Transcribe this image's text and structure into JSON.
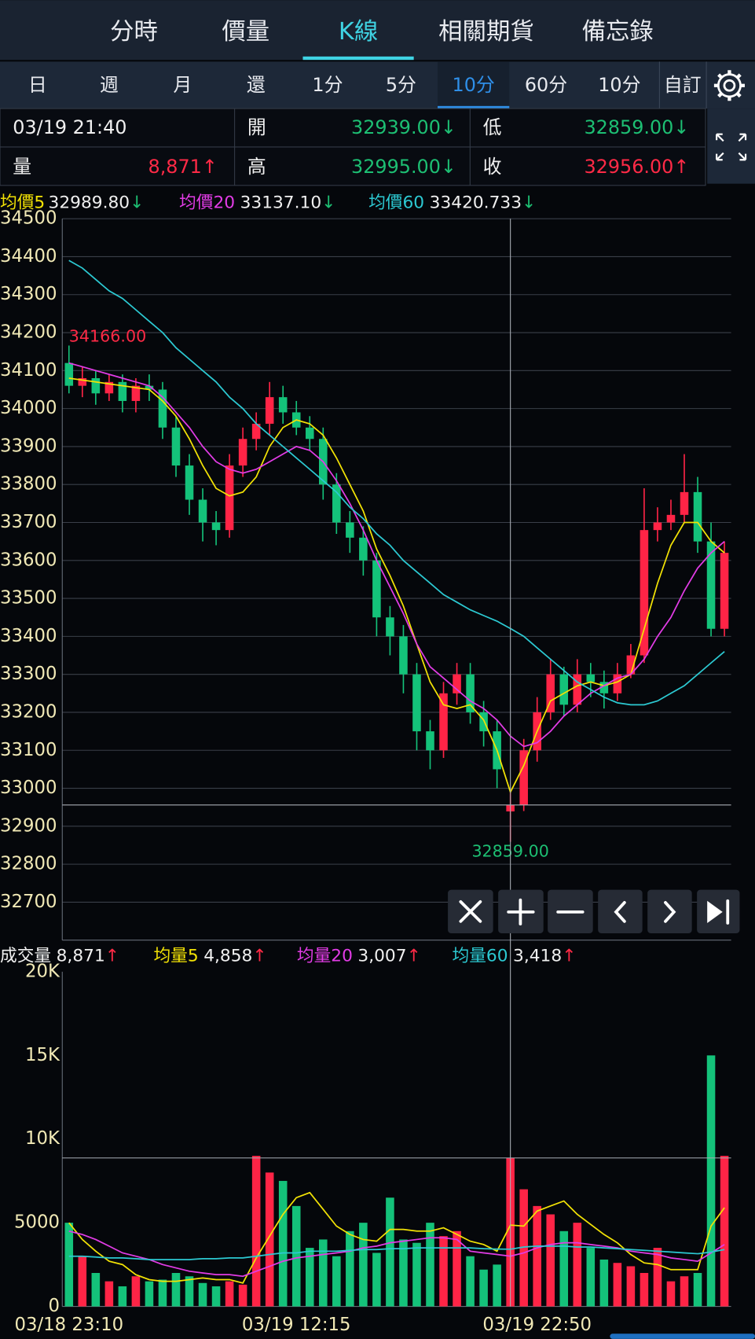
{
  "tabs": [
    "分時",
    "價量",
    "K線",
    "相關期貨",
    "備忘錄"
  ],
  "active_tab": 2,
  "periods": [
    "日",
    "週",
    "月",
    "還",
    "1分",
    "5分",
    "10分",
    "60分",
    "10分",
    "自訂"
  ],
  "active_period": 6,
  "info": {
    "datetime": "03/19 21:40",
    "volume": {
      "label": "量",
      "value": "8,871",
      "arrow": "↑"
    },
    "open": {
      "label": "開",
      "value": "32939.00",
      "arrow": "↓"
    },
    "high": {
      "label": "高",
      "value": "32995.00",
      "arrow": "↓"
    },
    "low": {
      "label": "低",
      "value": "32859.00",
      "arrow": "↓"
    },
    "close": {
      "label": "收",
      "value": "32956.00",
      "arrow": "↑"
    }
  },
  "chart_data": [
    {
      "type": "candlestick",
      "cursor_index": 33,
      "ylim": [
        32600,
        34500
      ],
      "yticks": [
        32700,
        32800,
        32900,
        33000,
        33100,
        33200,
        33300,
        33400,
        33500,
        33600,
        33700,
        33800,
        33900,
        34000,
        34100,
        34200,
        34300,
        34400,
        34500
      ],
      "grid": true,
      "up_color": "#ff2446",
      "down_color": "#14c27a",
      "open": [
        34120,
        34060,
        34080,
        34040,
        34070,
        34020,
        34060,
        34050,
        33950,
        33850,
        33760,
        33700,
        33680,
        33850,
        33920,
        33960,
        34030,
        33990,
        33950,
        33920,
        33800,
        33700,
        33660,
        33600,
        33450,
        33400,
        33300,
        33150,
        33100,
        33250,
        33300,
        33200,
        33150,
        32939,
        32956,
        33100,
        33200,
        33300,
        33220,
        33300,
        33280,
        33250,
        33300,
        33350,
        33680,
        33700,
        33720,
        33780,
        33650,
        33420
      ],
      "high": [
        34166,
        34110,
        34100,
        34090,
        34090,
        34080,
        34090,
        34070,
        33980,
        33880,
        33790,
        33730,
        33880,
        33950,
        33990,
        34070,
        34060,
        34020,
        33980,
        33950,
        33830,
        33730,
        33690,
        33620,
        33480,
        33430,
        33330,
        33180,
        33280,
        33330,
        33330,
        33230,
        33180,
        32995,
        33130,
        33240,
        33340,
        33320,
        33340,
        33330,
        33310,
        33330,
        33380,
        33790,
        33740,
        33760,
        33880,
        33820,
        33700,
        33650
      ],
      "low": [
        34040,
        34030,
        34010,
        34020,
        33990,
        33990,
        34020,
        33920,
        33820,
        33720,
        33650,
        33640,
        33660,
        33820,
        33890,
        33930,
        33960,
        33930,
        33890,
        33760,
        33670,
        33620,
        33560,
        33400,
        33350,
        33250,
        33100,
        33050,
        33080,
        33220,
        33170,
        33110,
        33000,
        32859,
        32940,
        33070,
        33180,
        33190,
        33200,
        33240,
        33210,
        33230,
        33290,
        33330,
        33650,
        33680,
        33700,
        33620,
        33400,
        33400
      ],
      "close": [
        34060,
        34080,
        34040,
        34070,
        34020,
        34060,
        34050,
        33950,
        33850,
        33760,
        33700,
        33680,
        33850,
        33920,
        33960,
        34030,
        33990,
        33950,
        33920,
        33800,
        33700,
        33660,
        33600,
        33450,
        33400,
        33300,
        33150,
        33100,
        33250,
        33300,
        33200,
        33150,
        33050,
        32956,
        33100,
        33200,
        33300,
        33220,
        33300,
        33280,
        33250,
        33300,
        33350,
        33680,
        33700,
        33720,
        33780,
        33650,
        33420,
        33620
      ],
      "high_label": "34166.00",
      "low_label": "32859.00",
      "series": [
        {
          "name": "均價5",
          "color": "#f2e205",
          "value_label": "32989.80",
          "arrow": "↓",
          "values": [
            34080,
            34075,
            34070,
            34065,
            34060,
            34055,
            34050,
            34020,
            33980,
            33920,
            33850,
            33790,
            33770,
            33780,
            33820,
            33900,
            33950,
            33970,
            33960,
            33930,
            33870,
            33800,
            33730,
            33630,
            33560,
            33480,
            33380,
            33280,
            33220,
            33210,
            33220,
            33180,
            33100,
            32989.8,
            33060,
            33150,
            33230,
            33250,
            33270,
            33280,
            33270,
            33280,
            33300,
            33420,
            33540,
            33640,
            33700,
            33700,
            33650,
            33620
          ]
        },
        {
          "name": "均價20",
          "color": "#e23ce6",
          "value_label": "33137.10",
          "arrow": "↓",
          "values": [
            34120,
            34110,
            34100,
            34090,
            34080,
            34070,
            34060,
            34030,
            33990,
            33950,
            33900,
            33860,
            33840,
            33830,
            33840,
            33860,
            33880,
            33900,
            33890,
            33860,
            33810,
            33750,
            33680,
            33600,
            33530,
            33460,
            33380,
            33320,
            33290,
            33260,
            33230,
            33210,
            33180,
            33137.1,
            33110,
            33120,
            33150,
            33190,
            33220,
            33250,
            33270,
            33290,
            33300,
            33340,
            33400,
            33450,
            33520,
            33580,
            33620,
            33650
          ]
        },
        {
          "name": "均價60",
          "color": "#2cc9d2",
          "value_label": "33420.733",
          "arrow": "↓",
          "values": [
            34390,
            34370,
            34340,
            34310,
            34290,
            34260,
            34230,
            34200,
            34160,
            34130,
            34100,
            34070,
            34030,
            34000,
            33960,
            33930,
            33900,
            33870,
            33840,
            33810,
            33780,
            33740,
            33710,
            33670,
            33640,
            33600,
            33570,
            33540,
            33510,
            33490,
            33470,
            33455,
            33440,
            33420.733,
            33400,
            33370,
            33340,
            33310,
            33280,
            33260,
            33240,
            33225,
            33220,
            33220,
            33230,
            33250,
            33270,
            33300,
            33330,
            33360
          ]
        }
      ]
    },
    {
      "type": "bar",
      "name": "成交量",
      "value_label": "8,871",
      "arrow": "↑",
      "ylim": [
        0,
        20000
      ],
      "yticks": [
        0,
        5000,
        {
          "value": 10000,
          "label": "10K"
        },
        {
          "value": 15000,
          "label": "15K"
        },
        {
          "value": 20000,
          "label": "20K"
        }
      ],
      "grid": false,
      "categories": [
        "03/18 23:10",
        null,
        null,
        null,
        null,
        null,
        null,
        null,
        null,
        null,
        null,
        null,
        null,
        null,
        null,
        null,
        null,
        "03/19 12:15",
        null,
        null,
        null,
        null,
        null,
        null,
        null,
        null,
        null,
        null,
        null,
        null,
        null,
        null,
        null,
        null,
        null,
        "03/19 22:50",
        null,
        null,
        null,
        null,
        null,
        null,
        null,
        null,
        null,
        null,
        null,
        null,
        null,
        null
      ],
      "values": [
        5000,
        3000,
        2000,
        1500,
        1200,
        1800,
        1500,
        1600,
        2000,
        1800,
        1400,
        1200,
        1500,
        1300,
        9000,
        8000,
        7500,
        6000,
        3500,
        4000,
        3000,
        4500,
        5000,
        3200,
        6500,
        4000,
        3800,
        5000,
        4200,
        4500,
        3000,
        2200,
        2500,
        8871,
        7000,
        6000,
        5500,
        4500,
        5000,
        3500,
        2800,
        2600,
        2400,
        2000,
        3500,
        1500,
        1800,
        2000,
        15000,
        9000
      ],
      "series": [
        {
          "name": "均量5",
          "color": "#f2e205",
          "value_label": "4,858",
          "arrow": "↑",
          "values": [
            5000,
            4000,
            3300,
            2700,
            2500,
            1900,
            1600,
            1500,
            1500,
            1600,
            1700,
            1600,
            1600,
            1400,
            2900,
            4200,
            5500,
            6500,
            6800,
            5800,
            4800,
            4300,
            4000,
            3900,
            4600,
            4600,
            4500,
            4500,
            4700,
            4300,
            3900,
            3700,
            3300,
            4858,
            4800,
            5700,
            6000,
            6300,
            5500,
            4900,
            4300,
            3800,
            3100,
            2600,
            2500,
            2200,
            2200,
            2200,
            4800,
            5900
          ]
        },
        {
          "name": "均量20",
          "color": "#e23ce6",
          "value_label": "3,007",
          "arrow": "↑",
          "values": [
            4500,
            4300,
            4000,
            3600,
            3200,
            3000,
            2800,
            2500,
            2300,
            2100,
            2000,
            1900,
            1900,
            1800,
            2100,
            2400,
            2700,
            2900,
            3000,
            3100,
            3200,
            3300,
            3500,
            3600,
            3800,
            3900,
            4000,
            4100,
            4100,
            4000,
            3300,
            3200,
            3100,
            3007,
            3200,
            3500,
            3700,
            3800,
            3800,
            3700,
            3600,
            3500,
            3300,
            3200,
            3100,
            2900,
            2800,
            2700,
            3200,
            3700
          ]
        },
        {
          "name": "均量60",
          "color": "#2cc9d2",
          "value_label": "3,418",
          "arrow": "↑",
          "values": [
            3000,
            3000,
            2950,
            2900,
            2900,
            2850,
            2800,
            2800,
            2800,
            2800,
            2850,
            2850,
            2900,
            2900,
            3000,
            3100,
            3200,
            3200,
            3300,
            3300,
            3300,
            3350,
            3400,
            3400,
            3450,
            3450,
            3500,
            3500,
            3500,
            3500,
            3500,
            3450,
            3430,
            3418,
            3550,
            3600,
            3600,
            3600,
            3550,
            3550,
            3500,
            3450,
            3400,
            3350,
            3300,
            3250,
            3200,
            3150,
            3250,
            3400
          ]
        }
      ]
    }
  ]
}
